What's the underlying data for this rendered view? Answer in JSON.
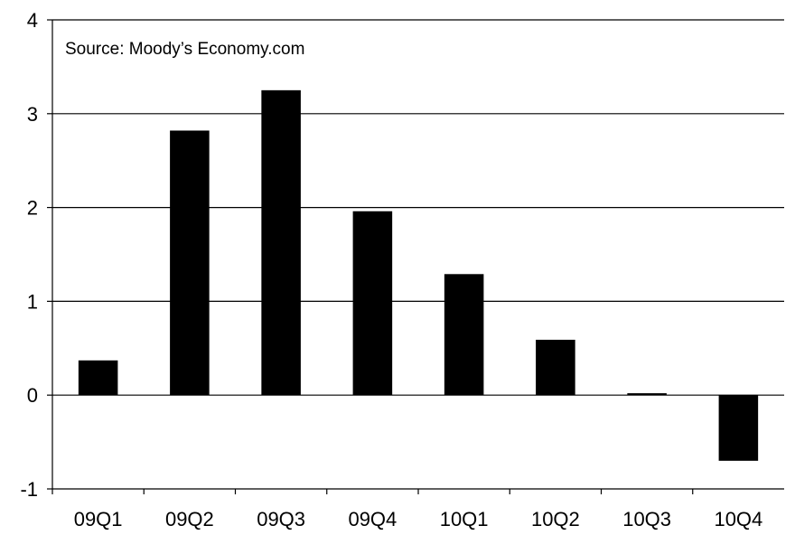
{
  "chart_data": {
    "type": "bar",
    "title": "",
    "xlabel": "",
    "ylabel": "",
    "annotation": "Source: Moody’s Economy.com",
    "categories": [
      "09Q1",
      "09Q2",
      "09Q3",
      "09Q4",
      "10Q1",
      "10Q2",
      "10Q3",
      "10Q4"
    ],
    "values": [
      0.37,
      2.82,
      3.25,
      1.96,
      1.29,
      0.59,
      0.02,
      -0.7
    ],
    "ylim": [
      -1,
      4
    ],
    "yticks": [
      -1,
      0,
      1,
      2,
      3,
      4
    ],
    "grid": true,
    "bar_color": "#000000"
  }
}
